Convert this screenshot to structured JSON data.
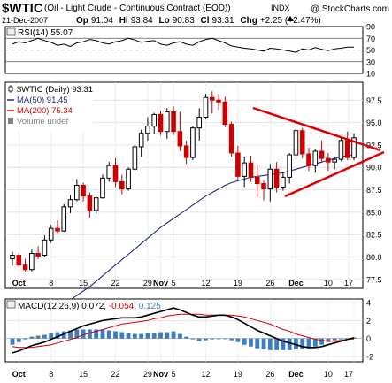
{
  "header": {
    "symbol": "$WTIC",
    "name": "(Oil - Light Crude - Continuous Contract (EOD))",
    "exchange": "INDX",
    "source": "@ StockCharts.com",
    "date": "21-Dec-2007",
    "open_label": "Op",
    "open": "91.04",
    "high_label": "Hi",
    "high": "93.84",
    "low_label": "Lo",
    "low": "90.83",
    "close_label": "Cl",
    "close": "93.31",
    "change_label": "Chg",
    "change": "+2.25 (+2.47%)",
    "change_icon": "up-triangle-icon"
  },
  "rsi_panel": {
    "label": "RSI(14) 55.07",
    "y_ticks": [
      "90",
      "70",
      "50",
      "30",
      "10"
    ],
    "line_color": "#000000"
  },
  "price_panel": {
    "legend": [
      {
        "text": "$WTIC (Daily) 93.31",
        "color": "#000000",
        "icon": "candlestick-icon"
      },
      {
        "text": "MA(50) 91.45",
        "color": "#1f2a8a",
        "icon": "line-swatch-icon"
      },
      {
        "text": "MA(200) 75.34",
        "color": "#d40000",
        "icon": "line-swatch-icon"
      },
      {
        "text": "Volume undef",
        "color": "#808080",
        "icon": "bar-swatch-icon"
      }
    ],
    "y_ticks": [
      "97.5",
      "95.0",
      "92.5",
      "90.0",
      "87.5",
      "85.0",
      "82.5",
      "80.0",
      "77.5"
    ],
    "x_labels": [
      "Oct",
      "8",
      "15",
      "22",
      "29",
      "Nov",
      "5",
      "12",
      "19",
      "26",
      "Dec",
      "10",
      "17"
    ],
    "up_color": "#000000",
    "down_color": "#cc0000",
    "ma50_color": "#1f2a8a",
    "pattern_color": "#dd0000"
  },
  "macd_panel": {
    "label_prefix": "MACD(12,26,9)",
    "macd_value": "0.072,",
    "signal_value": "-0.054,",
    "hist_value": "0.125",
    "macd_color": "#000000",
    "signal_color": "#d40000",
    "hist_color": "#3b7dc4",
    "y_ticks": [
      "4",
      "2",
      "0",
      "-2"
    ],
    "x_labels": [
      "Oct",
      "8",
      "15",
      "22",
      "29",
      "Nov",
      "5",
      "12",
      "19",
      "26",
      "Dec",
      "10",
      "17"
    ]
  },
  "chart_data": [
    {
      "type": "line",
      "title": "RSI(14) 55.07",
      "ylim": [
        10,
        90
      ],
      "grid": true,
      "values": [
        60,
        64,
        62,
        66,
        70,
        66,
        63,
        58,
        60,
        56,
        62,
        64,
        68,
        66,
        62,
        60,
        64,
        66,
        70,
        67,
        63,
        65,
        66,
        60,
        58,
        62,
        64,
        60,
        58,
        64,
        68,
        70,
        66,
        62,
        57,
        55,
        53,
        52,
        50,
        48,
        53,
        52,
        50,
        48,
        46,
        52,
        50,
        54,
        51,
        49,
        52,
        53,
        55,
        55
      ]
    },
    {
      "type": "candlestick",
      "title": "$WTIC (Daily) 93.31",
      "ylim": [
        76.5,
        99.5
      ],
      "x_labels": [
        "Oct",
        "8",
        "15",
        "22",
        "29",
        "Nov",
        "5",
        "12",
        "19",
        "26",
        "Dec",
        "10",
        "17"
      ],
      "candles": [
        [
          79.8,
          80.6,
          79.0,
          80.2
        ],
        [
          80.2,
          80.5,
          78.8,
          79.1
        ],
        [
          79.1,
          79.8,
          78.4,
          78.6
        ],
        [
          78.6,
          80.8,
          78.4,
          80.4
        ],
        [
          80.4,
          81.2,
          79.8,
          80.1
        ],
        [
          80.2,
          82.4,
          80.0,
          81.9
        ],
        [
          81.9,
          83.6,
          81.6,
          83.2
        ],
        [
          83.2,
          84.1,
          82.7,
          82.9
        ],
        [
          82.9,
          85.9,
          82.8,
          85.6
        ],
        [
          85.6,
          86.9,
          84.9,
          86.4
        ],
        [
          86.4,
          88.7,
          86.2,
          88.0
        ],
        [
          88.0,
          88.3,
          86.2,
          86.8
        ],
        [
          86.8,
          87.2,
          84.4,
          85.2
        ],
        [
          85.2,
          86.8,
          84.8,
          86.6
        ],
        [
          86.6,
          89.2,
          86.5,
          88.8
        ],
        [
          88.8,
          90.6,
          88.4,
          90.2
        ],
        [
          90.2,
          91.0,
          87.8,
          88.4
        ],
        [
          88.4,
          89.2,
          87.0,
          87.6
        ],
        [
          87.6,
          90.0,
          87.4,
          89.8
        ],
        [
          89.8,
          92.6,
          89.6,
          92.3
        ],
        [
          92.3,
          94.2,
          91.2,
          93.8
        ],
        [
          93.8,
          95.6,
          93.0,
          94.6
        ],
        [
          94.6,
          96.1,
          93.7,
          95.9
        ],
        [
          95.9,
          96.3,
          93.6,
          94.0
        ],
        [
          94.0,
          96.6,
          93.2,
          96.2
        ],
        [
          96.2,
          96.8,
          93.6,
          94.0
        ],
        [
          94.0,
          96.2,
          91.8,
          92.4
        ],
        [
          92.4,
          93.0,
          90.4,
          91.1
        ],
        [
          91.1,
          94.6,
          90.8,
          94.4
        ],
        [
          94.4,
          96.6,
          93.0,
          95.6
        ],
        [
          95.6,
          98.2,
          95.4,
          97.8
        ],
        [
          97.8,
          98.5,
          96.0,
          97.5
        ],
        [
          97.5,
          98.2,
          96.4,
          97.3
        ],
        [
          97.3,
          97.9,
          94.5,
          94.8
        ],
        [
          94.8,
          95.1,
          91.2,
          91.6
        ],
        [
          91.6,
          92.4,
          88.6,
          89.0
        ],
        [
          89.0,
          91.2,
          87.8,
          90.5
        ],
        [
          90.5,
          91.3,
          88.4,
          88.9
        ],
        [
          88.9,
          90.3,
          86.7,
          88.2
        ],
        [
          88.2,
          88.5,
          86.3,
          87.6
        ],
        [
          87.6,
          90.4,
          86.2,
          89.8
        ],
        [
          89.8,
          90.6,
          87.2,
          87.8
        ],
        [
          87.8,
          89.4,
          87.4,
          88.9
        ],
        [
          88.9,
          91.6,
          88.2,
          91.4
        ],
        [
          91.4,
          94.6,
          91.2,
          94.1
        ],
        [
          94.1,
          94.4,
          91.0,
          91.5
        ],
        [
          91.5,
          92.2,
          89.6,
          90.2
        ],
        [
          90.2,
          92.0,
          89.4,
          91.8
        ],
        [
          91.8,
          93.0,
          90.6,
          91.0
        ],
        [
          91.0,
          91.6,
          89.6,
          90.6
        ],
        [
          90.6,
          91.2,
          89.8,
          90.9
        ],
        [
          90.9,
          93.5,
          90.7,
          93.0
        ],
        [
          93.0,
          94.0,
          90.8,
          91.1
        ],
        [
          91.1,
          93.8,
          90.8,
          93.3
        ]
      ],
      "ma50": [
        71.5,
        71.8,
        72.2,
        72.6,
        73.0,
        73.4,
        73.8,
        74.2,
        74.7,
        75.2,
        75.7,
        76.2,
        76.7,
        77.3,
        77.9,
        78.5,
        79.1,
        79.7,
        80.3,
        80.9,
        81.5,
        82.1,
        82.7,
        83.3,
        83.8,
        84.3,
        84.8,
        85.3,
        85.8,
        86.3,
        86.8,
        87.2,
        87.6,
        88.0,
        88.3,
        88.5,
        88.7,
        88.9,
        89.0,
        89.1,
        89.2,
        89.3,
        89.4,
        89.6,
        89.8,
        90.0,
        90.2,
        90.4,
        90.6,
        90.8,
        91.0,
        91.2,
        91.3,
        91.45
      ],
      "annotations": [
        "symmetrical triangle (red trendlines)"
      ]
    },
    {
      "type": "line",
      "title": "MACD(12,26,9) 0.072, -0.054, 0.125",
      "ylim": [
        -2.6,
        4.4
      ],
      "series": [
        {
          "name": "MACD",
          "values": [
            -1.6,
            -1.4,
            -1.1,
            -0.8,
            -0.6,
            -0.4,
            -0.1,
            0.2,
            0.5,
            0.8,
            1.1,
            1.4,
            1.6,
            1.8,
            2.0,
            2.1,
            2.2,
            2.3,
            2.3,
            2.3,
            2.4,
            2.6,
            2.8,
            3.0,
            3.2,
            3.4,
            3.2,
            2.9,
            2.6,
            2.4,
            2.4,
            2.5,
            2.6,
            2.6,
            2.4,
            2.1,
            1.7,
            1.3,
            0.9,
            0.6,
            0.3,
            0.0,
            -0.3,
            -0.5,
            -0.7,
            -0.9,
            -1.0,
            -1.0,
            -0.9,
            -0.7,
            -0.5,
            -0.3,
            -0.1,
            0.072
          ]
        },
        {
          "name": "Signal",
          "values": [
            -0.9,
            -1.0,
            -1.0,
            -1.0,
            -0.9,
            -0.8,
            -0.7,
            -0.5,
            -0.3,
            -0.1,
            0.1,
            0.4,
            0.6,
            0.8,
            1.0,
            1.2,
            1.4,
            1.6,
            1.7,
            1.8,
            1.9,
            2.0,
            2.2,
            2.3,
            2.5,
            2.6,
            2.7,
            2.7,
            2.7,
            2.7,
            2.6,
            2.6,
            2.6,
            2.6,
            2.6,
            2.5,
            2.4,
            2.2,
            2.0,
            1.8,
            1.6,
            1.3,
            1.0,
            0.8,
            0.5,
            0.3,
            0.1,
            -0.1,
            -0.2,
            -0.3,
            -0.3,
            -0.2,
            -0.1,
            -0.054
          ]
        },
        {
          "name": "Histogram",
          "values": [
            -0.7,
            -0.4,
            -0.1,
            0.2,
            0.3,
            0.4,
            0.6,
            0.7,
            0.8,
            0.9,
            1.0,
            1.0,
            1.0,
            1.0,
            1.0,
            0.9,
            0.8,
            0.7,
            0.6,
            0.5,
            0.5,
            0.6,
            0.6,
            0.7,
            0.7,
            0.8,
            0.5,
            0.2,
            -0.1,
            -0.3,
            -0.2,
            -0.1,
            0.0,
            0.0,
            -0.2,
            -0.4,
            -0.7,
            -0.9,
            -1.1,
            -1.2,
            -1.3,
            -1.3,
            -1.3,
            -1.3,
            -1.2,
            -1.2,
            -1.1,
            -0.9,
            -0.7,
            -0.4,
            -0.2,
            -0.1,
            0.0,
            0.125
          ]
        }
      ]
    }
  ]
}
